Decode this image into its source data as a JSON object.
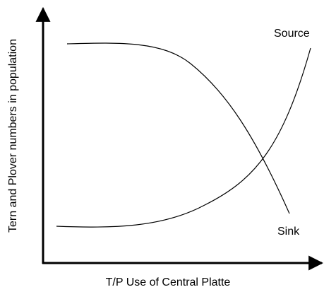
{
  "y_axis_label": "Tern and Plover numbers in population",
  "x_axis_label": "T/P Use of Central Platte",
  "curves": [
    {
      "label": "Source"
    },
    {
      "label": "Sink"
    }
  ]
}
